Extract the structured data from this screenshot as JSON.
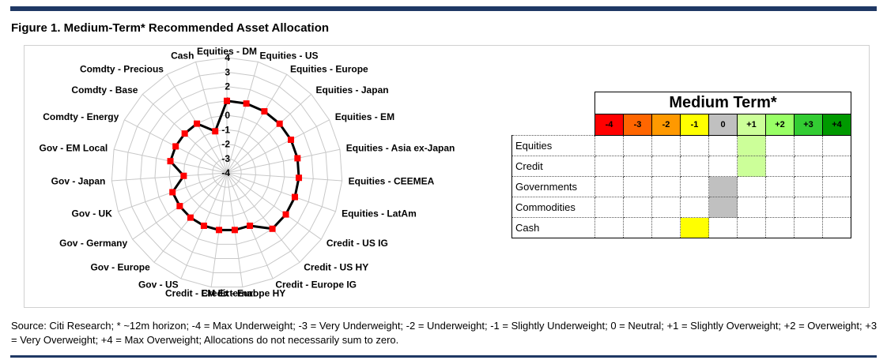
{
  "title": "Figure 1. Medium-Term* Recommended Asset Allocation",
  "chart_data": [
    {
      "type": "radar",
      "categories": [
        "Equities - DM",
        "Equities - US",
        "Equities - Europe",
        "Equities - Japan",
        "Equities - EM",
        "Equities - Asia ex-Japan",
        "Equities - CEEMEA",
        "Equities - LatAm",
        "Credit - US IG",
        "Credit - US HY",
        "Credit - Europe IG",
        "Credit - Europe HY",
        "Credit - EM External",
        "Gov - US",
        "Gov - Europe",
        "Gov - Germany",
        "Gov - UK",
        "Gov - Japan",
        "Gov - EM Local",
        "Comdty - Energy",
        "Comdty - Base",
        "Comdty - Precious",
        "Cash"
      ],
      "values": [
        1,
        1,
        1,
        1,
        1,
        1,
        1,
        1,
        1,
        1,
        0,
        0,
        0,
        0,
        0,
        0,
        0,
        -1,
        0,
        0,
        0,
        0,
        -1
      ],
      "scale_labels": [
        "-4",
        "-3",
        "-2",
        "-1",
        "0",
        "1",
        "2",
        "3",
        "4"
      ],
      "rlim": [
        -4,
        4
      ],
      "grid": true,
      "line_color": "#000000",
      "marker_color": "#ff0000"
    },
    {
      "type": "table",
      "title": "Medium Term*",
      "columns": [
        "-4",
        "-3",
        "-2",
        "-1",
        "0",
        "+1",
        "+2",
        "+3",
        "+4"
      ],
      "column_colors": [
        "#ff0000",
        "#ff6600",
        "#ff9900",
        "#ffff00",
        "#c0c0c0",
        "#ccff99",
        "#99ff66",
        "#33cc33",
        "#009900"
      ],
      "rows": [
        {
          "label": "Equities",
          "position": "+1"
        },
        {
          "label": "Credit",
          "position": "+1"
        },
        {
          "label": "Governments",
          "position": "0"
        },
        {
          "label": "Commodities",
          "position": "0"
        },
        {
          "label": "Cash",
          "position": "-1"
        }
      ]
    }
  ],
  "source": "Source: Citi Research; * ~12m horizon; -4 = Max Underweight; -3 = Very Underweight; -2 = Underweight; -1 = Slightly Underweight; 0 = Neutral; +1 = Slightly Overweight; +2 = Overweight; +3 = Very Overweight; +4 = Max Overweight; Allocations do not necessarily sum to zero."
}
